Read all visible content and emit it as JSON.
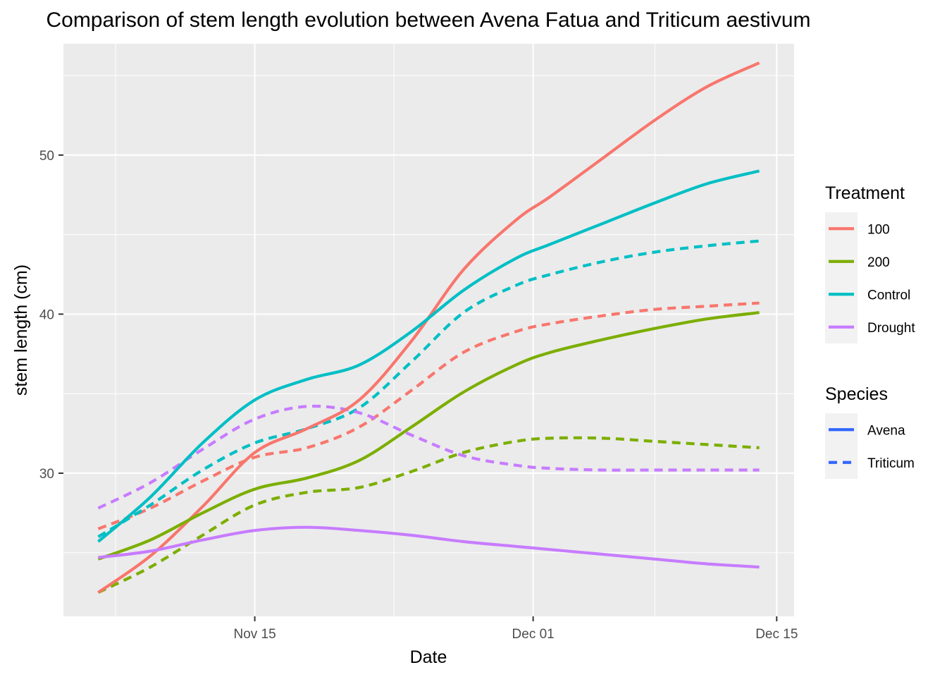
{
  "chart_data": {
    "type": "line",
    "title": "Comparison of stem length evolution between Avena Fatua and Triticum aestivum",
    "xlabel": "Date",
    "ylabel": "stem length (cm)",
    "x_range": [
      "2023-11-04",
      "2023-12-16"
    ],
    "y_range": [
      21,
      57
    ],
    "x_ticks": [
      {
        "date": "2023-11-15",
        "label": "Nov 15"
      },
      {
        "date": "2023-12-01",
        "label": "Dec 01"
      },
      {
        "date": "2023-12-15",
        "label": "Dec 15"
      }
    ],
    "y_ticks": [
      30,
      40,
      50
    ],
    "grid": true,
    "legend_position": "right",
    "legends": [
      {
        "title": "Treatment",
        "entries": [
          {
            "label": "100",
            "color": "#F8766D"
          },
          {
            "label": "200",
            "color": "#7CAE00"
          },
          {
            "label": "Control",
            "color": "#00BFC4"
          },
          {
            "label": "Drought",
            "color": "#C77CFF"
          }
        ]
      },
      {
        "title": "Species",
        "entries": [
          {
            "label": "Avena",
            "linetype": "solid"
          },
          {
            "label": "Triticum",
            "linetype": "dashed"
          }
        ]
      }
    ],
    "series": [
      {
        "name": "100",
        "species": "Avena",
        "color": "#F8766D",
        "linetype": "solid",
        "x": [
          "2023-11-06",
          "2023-11-09",
          "2023-11-12",
          "2023-11-15",
          "2023-11-18",
          "2023-11-21",
          "2023-11-24",
          "2023-11-27",
          "2023-11-30",
          "2023-12-02",
          "2023-12-05",
          "2023-12-08",
          "2023-12-11",
          "2023-12-14"
        ],
        "y": [
          22.5,
          24.8,
          27.9,
          31.3,
          32.8,
          34.6,
          38.3,
          42.8,
          45.9,
          47.4,
          49.8,
          52.2,
          54.3,
          55.8
        ]
      },
      {
        "name": "200",
        "species": "Avena",
        "color": "#7CAE00",
        "linetype": "solid",
        "x": [
          "2023-11-06",
          "2023-11-09",
          "2023-11-12",
          "2023-11-15",
          "2023-11-18",
          "2023-11-21",
          "2023-11-24",
          "2023-11-27",
          "2023-11-30",
          "2023-12-02",
          "2023-12-05",
          "2023-12-08",
          "2023-12-11",
          "2023-12-14"
        ],
        "y": [
          24.6,
          25.8,
          27.5,
          29.0,
          29.7,
          30.8,
          32.9,
          35.1,
          36.8,
          37.6,
          38.4,
          39.1,
          39.7,
          40.1
        ]
      },
      {
        "name": "Control",
        "species": "Avena",
        "color": "#00BFC4",
        "linetype": "solid",
        "x": [
          "2023-11-06",
          "2023-11-09",
          "2023-11-12",
          "2023-11-15",
          "2023-11-18",
          "2023-11-21",
          "2023-11-24",
          "2023-11-27",
          "2023-11-30",
          "2023-12-02",
          "2023-12-05",
          "2023-12-08",
          "2023-12-11",
          "2023-12-14"
        ],
        "y": [
          25.7,
          28.5,
          31.9,
          34.6,
          35.9,
          36.8,
          38.9,
          41.5,
          43.5,
          44.4,
          45.7,
          47.0,
          48.2,
          49.0
        ]
      },
      {
        "name": "Drought",
        "species": "Avena",
        "color": "#C77CFF",
        "linetype": "solid",
        "x": [
          "2023-11-06",
          "2023-11-09",
          "2023-11-12",
          "2023-11-15",
          "2023-11-18",
          "2023-11-21",
          "2023-11-24",
          "2023-11-27",
          "2023-11-30",
          "2023-12-02",
          "2023-12-05",
          "2023-12-08",
          "2023-12-11",
          "2023-12-14"
        ],
        "y": [
          24.7,
          25.1,
          25.8,
          26.4,
          26.6,
          26.4,
          26.1,
          25.7,
          25.4,
          25.2,
          24.9,
          24.6,
          24.3,
          24.1
        ]
      },
      {
        "name": "100",
        "species": "Triticum",
        "color": "#F8766D",
        "linetype": "dashed",
        "x": [
          "2023-11-06",
          "2023-11-09",
          "2023-11-12",
          "2023-11-15",
          "2023-11-18",
          "2023-11-21",
          "2023-11-24",
          "2023-11-27",
          "2023-11-30",
          "2023-12-02",
          "2023-12-05",
          "2023-12-08",
          "2023-12-11",
          "2023-12-14"
        ],
        "y": [
          26.5,
          27.8,
          29.5,
          31.0,
          31.6,
          32.9,
          35.2,
          37.6,
          38.9,
          39.4,
          39.9,
          40.3,
          40.5,
          40.7
        ]
      },
      {
        "name": "200",
        "species": "Triticum",
        "color": "#7CAE00",
        "linetype": "dashed",
        "x": [
          "2023-11-06",
          "2023-11-09",
          "2023-11-12",
          "2023-11-15",
          "2023-11-18",
          "2023-11-21",
          "2023-11-24",
          "2023-11-27",
          "2023-11-30",
          "2023-12-02",
          "2023-12-05",
          "2023-12-08",
          "2023-12-11",
          "2023-12-14"
        ],
        "y": [
          22.5,
          24.1,
          26.1,
          28.0,
          28.8,
          29.1,
          30.1,
          31.3,
          32.0,
          32.2,
          32.2,
          32.0,
          31.8,
          31.6
        ]
      },
      {
        "name": "Control",
        "species": "Triticum",
        "color": "#00BFC4",
        "linetype": "dashed",
        "x": [
          "2023-11-06",
          "2023-11-09",
          "2023-11-12",
          "2023-11-15",
          "2023-11-18",
          "2023-11-21",
          "2023-11-24",
          "2023-11-27",
          "2023-11-30",
          "2023-12-02",
          "2023-12-05",
          "2023-12-08",
          "2023-12-11",
          "2023-12-14"
        ],
        "y": [
          26.0,
          28.0,
          30.2,
          31.9,
          32.8,
          34.1,
          37.0,
          40.1,
          41.8,
          42.5,
          43.3,
          43.9,
          44.3,
          44.6
        ]
      },
      {
        "name": "Drought",
        "species": "Triticum",
        "color": "#C77CFF",
        "linetype": "dashed",
        "x": [
          "2023-11-06",
          "2023-11-09",
          "2023-11-12",
          "2023-11-15",
          "2023-11-18",
          "2023-11-21",
          "2023-11-24",
          "2023-11-27",
          "2023-11-30",
          "2023-12-02",
          "2023-12-05",
          "2023-12-08",
          "2023-12-11",
          "2023-12-14"
        ],
        "y": [
          27.8,
          29.4,
          31.5,
          33.4,
          34.2,
          33.8,
          32.4,
          31.1,
          30.5,
          30.3,
          30.2,
          30.2,
          30.2,
          30.2
        ]
      }
    ]
  }
}
